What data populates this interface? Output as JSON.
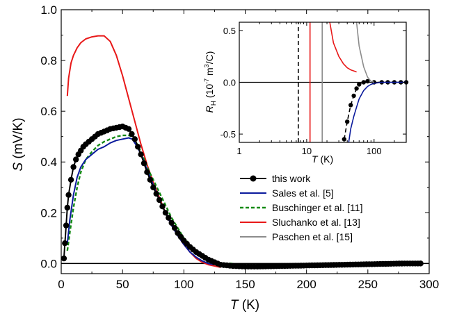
{
  "chart_data": [
    {
      "type": "line",
      "xlabel": {
        "main": "T",
        "unit": " (K)"
      },
      "ylabel": {
        "main": "S",
        "unit": " (mV/K)"
      },
      "xlim": [
        0,
        300
      ],
      "ylim": [
        -0.04,
        1.0
      ],
      "xticks": [
        0,
        50,
        100,
        150,
        200,
        250,
        300
      ],
      "yticks": [
        0.0,
        0.2,
        0.4,
        0.6,
        0.8,
        1.0
      ],
      "xtick_labels": [
        "0",
        "50",
        "100",
        "150",
        "200",
        "250",
        "300"
      ],
      "ytick_labels": [
        "0.0",
        "0.2",
        "0.4",
        "0.6",
        "0.8",
        "1.0"
      ],
      "zero_line": true,
      "legend_position": "bottom-right",
      "series": [
        {
          "name": "this work",
          "style": "line-with-markers",
          "color": "#000000",
          "x": [
            2.2,
            3,
            4,
            5,
            6,
            8,
            10,
            12,
            14,
            16,
            18,
            20,
            25,
            30,
            35,
            40,
            45,
            50,
            55,
            60,
            65,
            70,
            75,
            80,
            85,
            90,
            95,
            100,
            105,
            110,
            115,
            120,
            125,
            130,
            140,
            150,
            160,
            180,
            200,
            220,
            240,
            260,
            280,
            293
          ],
          "y": [
            0.02,
            0.08,
            0.15,
            0.22,
            0.27,
            0.33,
            0.38,
            0.41,
            0.43,
            0.445,
            0.46,
            0.47,
            0.49,
            0.51,
            0.52,
            0.53,
            0.535,
            0.54,
            0.53,
            0.49,
            0.43,
            0.36,
            0.3,
            0.25,
            0.2,
            0.16,
            0.12,
            0.09,
            0.065,
            0.045,
            0.03,
            0.015,
            0.005,
            -0.005,
            -0.01,
            -0.012,
            -0.012,
            -0.01,
            -0.008,
            -0.006,
            -0.004,
            -0.002,
            0.0,
            0.0
          ]
        },
        {
          "name": "Sales et al. [5]",
          "style": "solid",
          "color": "#0a1a9c",
          "x": [
            5,
            7,
            10,
            13,
            16,
            20,
            25,
            30,
            35,
            40,
            45,
            50,
            55,
            58,
            62,
            66,
            70,
            75,
            80,
            85,
            90,
            95,
            100,
            105,
            110,
            115,
            120,
            125
          ],
          "y": [
            0.08,
            0.17,
            0.27,
            0.34,
            0.38,
            0.41,
            0.43,
            0.45,
            0.46,
            0.475,
            0.485,
            0.49,
            0.495,
            0.49,
            0.46,
            0.42,
            0.37,
            0.31,
            0.25,
            0.2,
            0.15,
            0.11,
            0.075,
            0.045,
            0.025,
            0.01,
            0.0,
            -0.005
          ]
        },
        {
          "name": "Buschinger et al. [11]",
          "style": "dashed",
          "color": "#138a13",
          "x": [
            5,
            7,
            10,
            13,
            16,
            20,
            25,
            30,
            35,
            40,
            45,
            50,
            55,
            58,
            62,
            66,
            70,
            75,
            80,
            85,
            90,
            95,
            100,
            105,
            110,
            115,
            120,
            125,
            130,
            140
          ],
          "y": [
            0.05,
            0.12,
            0.22,
            0.3,
            0.36,
            0.41,
            0.44,
            0.465,
            0.48,
            0.49,
            0.5,
            0.505,
            0.505,
            0.5,
            0.47,
            0.43,
            0.38,
            0.33,
            0.28,
            0.23,
            0.18,
            0.14,
            0.1,
            0.075,
            0.05,
            0.03,
            0.015,
            0.005,
            0.0,
            0.0
          ]
        },
        {
          "name": "Sluchanko et al. [13]",
          "style": "solid",
          "color": "#e81818",
          "x": [
            5,
            6,
            8,
            10,
            13,
            16,
            20,
            25,
            30,
            35,
            40,
            45,
            50,
            55,
            60,
            65,
            70,
            75,
            80,
            85,
            90,
            95,
            100,
            105,
            110,
            115,
            120,
            125,
            130
          ],
          "y": [
            0.66,
            0.73,
            0.79,
            0.82,
            0.85,
            0.87,
            0.885,
            0.893,
            0.897,
            0.897,
            0.875,
            0.82,
            0.74,
            0.65,
            0.56,
            0.47,
            0.39,
            0.32,
            0.26,
            0.2,
            0.15,
            0.11,
            0.075,
            0.045,
            0.02,
            0.005,
            -0.005,
            -0.01,
            -0.015
          ]
        }
      ]
    },
    {
      "type": "line",
      "role": "inset",
      "xlabel": {
        "main": "T",
        "unit": " (K)"
      },
      "ylabel": {
        "main": "R",
        "sub": "H",
        "unit_pre": " (10",
        "unit_exp": "-7",
        "unit_post": " m",
        "unit_exp2": "3",
        "unit_end": "/C)"
      },
      "xscale": "log",
      "xlim": [
        1,
        300
      ],
      "ylim": [
        -0.58,
        0.58
      ],
      "xticks": [
        1,
        10,
        100
      ],
      "xtick_labels": [
        "1",
        "10",
        "100"
      ],
      "yticks": [
        -0.5,
        0.0,
        0.5
      ],
      "ytick_labels": [
        "-0.5",
        "0.0",
        "0.5"
      ],
      "zero_line": true,
      "series": [
        {
          "name": "this work",
          "style": "dashed-with-markers",
          "color": "#000000",
          "x": [
            7.5,
            7.5
          ],
          "y": [
            -0.58,
            0.58
          ]
        },
        {
          "name": "this work",
          "style": "dashed-with-markers",
          "color": "#000000",
          "x": [
            36,
            40,
            45,
            50,
            55,
            60,
            70,
            80,
            100,
            130,
            160,
            200,
            250,
            300
          ],
          "y": [
            -0.55,
            -0.38,
            -0.22,
            -0.13,
            -0.06,
            -0.02,
            0.0,
            0.01,
            0.0,
            0.0,
            0.0,
            0.0,
            0.0,
            0.0
          ]
        },
        {
          "name": "Sales et al. [5]",
          "style": "solid",
          "color": "#0a1a9c",
          "x": [
            42,
            45,
            50,
            55,
            60,
            70,
            80,
            90,
            100,
            130,
            160,
            200,
            250,
            300
          ],
          "y": [
            -0.58,
            -0.45,
            -0.33,
            -0.24,
            -0.16,
            -0.08,
            -0.04,
            -0.02,
            -0.01,
            0.0,
            0.0,
            0.0,
            0.0,
            0.0
          ]
        },
        {
          "name": "Sluchanko et al. [13]",
          "style": "solid",
          "color": "#e81818",
          "x": [
            11.2,
            11.2
          ],
          "y": [
            -0.58,
            0.58
          ]
        },
        {
          "name": "Sluchanko et al. [13]",
          "style": "solid",
          "color": "#e81818",
          "x": [
            22,
            25,
            30,
            35,
            40,
            45,
            50,
            55
          ],
          "y": [
            0.58,
            0.38,
            0.25,
            0.18,
            0.14,
            0.12,
            0.11,
            0.1
          ]
        },
        {
          "name": "Paschen et al. [15]",
          "style": "solid",
          "color": "#8c8c8c",
          "x": [
            17,
            17
          ],
          "y": [
            -0.58,
            0.58
          ]
        },
        {
          "name": "Paschen et al. [15]",
          "style": "solid",
          "color": "#8c8c8c",
          "x": [
            55,
            60,
            70,
            80,
            90,
            100
          ],
          "y": [
            0.58,
            0.35,
            0.15,
            0.05,
            0.01,
            0.0
          ]
        }
      ]
    }
  ],
  "legend": [
    {
      "label": "this work",
      "color": "#000000",
      "style": "line-with-markers"
    },
    {
      "label": "Sales et al. [5]",
      "color": "#0a1a9c",
      "style": "solid"
    },
    {
      "label": "Buschinger et al. [11]",
      "color": "#138a13",
      "style": "dashed"
    },
    {
      "label": "Sluchanko et al. [13]",
      "color": "#e81818",
      "style": "solid"
    },
    {
      "label": "Paschen et al. [15]",
      "color": "#8c8c8c",
      "style": "solid"
    }
  ]
}
